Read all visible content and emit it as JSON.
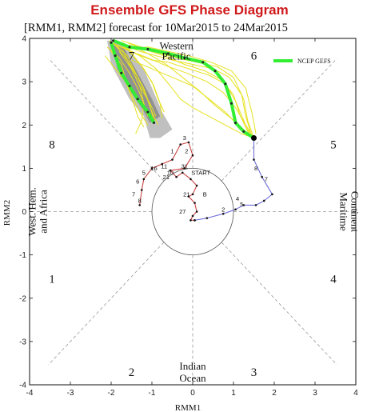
{
  "header": {
    "title": "Ensemble GFS Phase Diagram",
    "subtitle": "[RMM1, RMM2] forecast for 10Mar2015 to 24Mar2015"
  },
  "chart_data": {
    "type": "line",
    "xlabel": "RMM1",
    "ylabel": "RMM2",
    "xlim": [
      -4,
      4
    ],
    "ylim": [
      -4,
      4
    ],
    "xticks": [
      -4,
      -3,
      -2,
      -1,
      0,
      1,
      2,
      3,
      4
    ],
    "yticks": [
      -4,
      -3,
      -2,
      -1,
      0,
      1,
      2,
      3,
      4
    ],
    "grid": false,
    "legend_position": "top-right",
    "legend": [
      {
        "label": "NCEP GEFS",
        "color": "#33ee33"
      }
    ],
    "phases": [
      {
        "label": "1",
        "x": -3.45,
        "y": -1.55
      },
      {
        "label": "2",
        "x": -1.5,
        "y": -3.7
      },
      {
        "label": "3",
        "x": 1.5,
        "y": -3.7
      },
      {
        "label": "4",
        "x": 3.45,
        "y": -1.55
      },
      {
        "label": "5",
        "x": 3.45,
        "y": 1.55
      },
      {
        "label": "6",
        "x": 1.5,
        "y": 3.6
      },
      {
        "label": "7",
        "x": -1.5,
        "y": 3.6
      },
      {
        "label": "8",
        "x": -3.45,
        "y": 1.55
      }
    ],
    "regions": [
      {
        "label": "West. Hem.",
        "side": "left",
        "line": 1
      },
      {
        "label": "and Africa",
        "side": "left",
        "line": 2
      },
      {
        "label": "Maritime",
        "side": "right",
        "line": 1
      },
      {
        "label": "Continent",
        "side": "right",
        "line": 2
      },
      {
        "label": "Indian",
        "side": "bottom",
        "line": 1
      },
      {
        "label": "Ocean",
        "side": "bottom",
        "line": 2
      },
      {
        "label": "Western",
        "side": "top",
        "line": 1
      },
      {
        "label": "Pacific",
        "side": "top",
        "line": 2
      }
    ],
    "observed_series": [
      {
        "color": "#cc4444",
        "points": [
          [
            -1.3,
            0.15
          ],
          [
            -1.25,
            0.5
          ],
          [
            -1.2,
            0.75
          ],
          [
            -1.0,
            1.0
          ],
          [
            -0.75,
            1.1
          ],
          [
            -0.5,
            1.2
          ],
          [
            -0.3,
            1.55
          ],
          [
            -0.1,
            1.6
          ],
          [
            0.0,
            1.3
          ],
          [
            -0.2,
            1.0
          ],
          [
            -0.55,
            0.95
          ],
          [
            -0.4,
            0.8
          ],
          [
            -0.25,
            0.9
          ],
          [
            -0.05,
            0.75
          ],
          [
            0.1,
            0.6
          ],
          [
            0.0,
            0.4
          ],
          [
            -0.1,
            0.35
          ],
          [
            0.05,
            0.2
          ],
          [
            0.1,
            0.0
          ],
          [
            0.0,
            -0.1
          ],
          [
            -0.05,
            -0.2
          ],
          [
            0.05,
            -0.2
          ]
        ]
      },
      {
        "color": "#6f6fd8",
        "points": [
          [
            0.05,
            -0.2
          ],
          [
            0.35,
            -0.15
          ],
          [
            0.75,
            -0.05
          ],
          [
            1.05,
            0.05
          ],
          [
            1.25,
            0.15
          ],
          [
            1.55,
            0.15
          ],
          [
            1.75,
            0.25
          ],
          [
            1.95,
            0.4
          ],
          [
            1.7,
            0.8
          ],
          [
            1.5,
            1.2
          ],
          [
            1.5,
            1.7
          ]
        ]
      }
    ],
    "day_labels": [
      {
        "label": "3",
        "x": -0.2,
        "y": 1.65
      },
      {
        "label": "7",
        "x": -1.45,
        "y": 0.35
      },
      {
        "label": "8",
        "x": -1.3,
        "y": 0.2
      },
      {
        "label": "6",
        "x": -1.35,
        "y": 0.65
      },
      {
        "label": "5",
        "x": -1.2,
        "y": 0.85
      },
      {
        "label": "16",
        "x": -0.95,
        "y": 0.95
      },
      {
        "label": "1",
        "x": -0.5,
        "y": 1.35
      },
      {
        "label": "2",
        "x": -0.15,
        "y": 1.35
      },
      {
        "label": "11",
        "x": -0.7,
        "y": 1.0
      },
      {
        "label": "10",
        "x": -0.55,
        "y": 0.85
      },
      {
        "label": "31",
        "x": -0.2,
        "y": 1.0
      },
      {
        "label": "21",
        "x": -0.65,
        "y": 0.75
      },
      {
        "label": "START",
        "x": 0.2,
        "y": 0.85
      },
      {
        "label": "B",
        "x": 0.3,
        "y": 0.35
      },
      {
        "label": "21",
        "x": -0.15,
        "y": 0.35
      },
      {
        "label": "27",
        "x": -0.25,
        "y": -0.05
      },
      {
        "label": "8",
        "x": 1.55,
        "y": 0.95
      },
      {
        "label": "7",
        "x": 1.8,
        "y": 0.7
      },
      {
        "label": "2",
        "x": 0.75,
        "y": 0.0
      },
      {
        "label": "4",
        "x": 1.1,
        "y": 0.25
      },
      {
        "label": "5",
        "x": 1.2,
        "y": 0.12
      }
    ],
    "ensemble_spread": {
      "outer": [
        [
          -2.1,
          3.95
        ],
        [
          -1.7,
          3.9
        ],
        [
          -1.2,
          3.3
        ],
        [
          -0.75,
          2.3
        ],
        [
          -0.5,
          1.9
        ],
        [
          -0.8,
          1.7
        ],
        [
          -1.05,
          1.7
        ],
        [
          -1.2,
          2.2
        ],
        [
          -1.55,
          2.6
        ],
        [
          -2.0,
          3.4
        ],
        [
          -2.05,
          3.7
        ]
      ],
      "inner": [
        [
          -1.95,
          3.9
        ],
        [
          -1.7,
          3.8
        ],
        [
          -1.35,
          3.2
        ],
        [
          -1.0,
          2.6
        ],
        [
          -0.8,
          2.2
        ],
        [
          -1.05,
          2.05
        ],
        [
          -1.25,
          2.4
        ],
        [
          -1.55,
          2.8
        ],
        [
          -1.85,
          3.3
        ]
      ]
    },
    "ensemble_members": [
      [
        [
          -2.05,
          3.95
        ],
        [
          -1.7,
          3.7
        ],
        [
          -1.5,
          3.3
        ],
        [
          -1.3,
          2.9
        ],
        [
          -1.05,
          2.5
        ],
        [
          -0.9,
          2.2
        ]
      ],
      [
        [
          -1.95,
          3.9
        ],
        [
          -1.6,
          3.5
        ],
        [
          -1.35,
          3.1
        ],
        [
          -1.15,
          2.7
        ],
        [
          -1.0,
          2.3
        ],
        [
          -0.85,
          2.0
        ]
      ],
      [
        [
          -2.15,
          3.6
        ],
        [
          -1.9,
          3.3
        ],
        [
          -1.65,
          3.0
        ],
        [
          -1.45,
          2.6
        ],
        [
          -1.3,
          2.3
        ],
        [
          -1.1,
          2.0
        ]
      ],
      [
        [
          -1.85,
          3.95
        ],
        [
          -1.55,
          3.7
        ],
        [
          -1.25,
          3.35
        ],
        [
          -1.0,
          3.0
        ],
        [
          -0.85,
          2.6
        ],
        [
          -0.7,
          2.3
        ]
      ],
      [
        [
          -2.1,
          3.8
        ],
        [
          -1.8,
          3.55
        ],
        [
          -1.55,
          3.2
        ],
        [
          -1.35,
          2.85
        ],
        [
          -1.2,
          2.5
        ],
        [
          -1.1,
          2.2
        ]
      ],
      [
        [
          -2.0,
          3.7
        ],
        [
          -1.75,
          3.4
        ],
        [
          -1.6,
          2.9
        ],
        [
          -1.45,
          2.5
        ],
        [
          -1.35,
          2.2
        ],
        [
          -1.2,
          1.95
        ]
      ],
      [
        [
          -1.9,
          3.85
        ],
        [
          -1.6,
          3.6
        ],
        [
          -1.4,
          3.2
        ],
        [
          -1.2,
          2.85
        ],
        [
          -1.05,
          2.45
        ],
        [
          -0.95,
          2.1
        ]
      ],
      [
        [
          -1.7,
          3.9
        ],
        [
          -1.45,
          3.6
        ],
        [
          -1.2,
          3.3
        ],
        [
          -0.95,
          2.9
        ],
        [
          -0.8,
          2.5
        ],
        [
          -0.75,
          2.15
        ]
      ],
      [
        [
          -1.8,
          3.9
        ],
        [
          -1.3,
          3.7
        ],
        [
          -0.9,
          3.6
        ],
        [
          -0.5,
          3.5
        ],
        [
          0.0,
          3.4
        ],
        [
          0.5,
          3.3
        ],
        [
          0.9,
          3.1
        ],
        [
          1.2,
          2.7
        ],
        [
          1.3,
          2.2
        ],
        [
          1.45,
          1.75
        ]
      ],
      [
        [
          -1.75,
          3.95
        ],
        [
          -1.25,
          3.8
        ],
        [
          -0.8,
          3.65
        ],
        [
          -0.4,
          3.55
        ],
        [
          0.1,
          3.45
        ],
        [
          0.6,
          3.35
        ],
        [
          1.0,
          3.1
        ],
        [
          1.25,
          2.6
        ],
        [
          1.35,
          2.1
        ],
        [
          1.5,
          1.7
        ]
      ],
      [
        [
          -1.6,
          3.9
        ],
        [
          -1.2,
          3.75
        ],
        [
          -0.7,
          3.6
        ],
        [
          -0.2,
          3.4
        ],
        [
          0.3,
          3.25
        ],
        [
          0.7,
          3.05
        ],
        [
          1.0,
          2.7
        ],
        [
          1.15,
          2.25
        ],
        [
          1.35,
          1.85
        ],
        [
          1.5,
          1.7
        ]
      ],
      [
        [
          -1.9,
          3.85
        ],
        [
          -1.4,
          3.65
        ],
        [
          -1.0,
          3.5
        ],
        [
          -0.6,
          3.45
        ],
        [
          -0.1,
          3.3
        ],
        [
          0.4,
          3.15
        ],
        [
          0.8,
          2.95
        ],
        [
          1.05,
          2.55
        ],
        [
          1.3,
          2.0
        ],
        [
          1.45,
          1.7
        ]
      ],
      [
        [
          -1.7,
          3.8
        ],
        [
          -1.3,
          3.6
        ],
        [
          -0.9,
          3.3
        ],
        [
          -0.55,
          2.9
        ],
        [
          -0.3,
          2.6
        ],
        [
          0.0,
          2.4
        ],
        [
          0.4,
          2.2
        ],
        [
          0.8,
          2.0
        ],
        [
          1.2,
          1.8
        ],
        [
          1.5,
          1.7
        ]
      ],
      [
        [
          -1.5,
          3.5
        ],
        [
          -1.0,
          3.3
        ],
        [
          -0.5,
          3.1
        ],
        [
          0.0,
          2.9
        ],
        [
          0.4,
          2.6
        ],
        [
          0.8,
          2.3
        ],
        [
          1.2,
          1.9
        ],
        [
          1.5,
          1.7
        ]
      ],
      [
        [
          -1.65,
          3.75
        ],
        [
          -1.1,
          3.55
        ],
        [
          -0.6,
          3.35
        ],
        [
          -0.15,
          3.2
        ],
        [
          0.35,
          3.0
        ],
        [
          0.75,
          2.75
        ],
        [
          1.05,
          2.4
        ],
        [
          1.3,
          2.0
        ],
        [
          1.5,
          1.7
        ]
      ],
      [
        [
          -2.0,
          3.9
        ],
        [
          -1.6,
          3.75
        ],
        [
          -1.1,
          3.8
        ],
        [
          -0.6,
          3.7
        ],
        [
          -0.1,
          3.6
        ],
        [
          0.45,
          3.45
        ],
        [
          0.95,
          3.25
        ],
        [
          1.3,
          2.85
        ],
        [
          1.45,
          2.3
        ],
        [
          1.55,
          1.8
        ]
      ],
      [
        [
          -1.8,
          3.7
        ],
        [
          -1.5,
          3.3
        ],
        [
          -1.3,
          2.9
        ],
        [
          -1.2,
          2.5
        ],
        [
          -1.25,
          2.1
        ],
        [
          -1.4,
          1.8
        ]
      ],
      [
        [
          -1.55,
          3.85
        ],
        [
          -1.1,
          3.65
        ],
        [
          -0.65,
          3.4
        ],
        [
          -0.25,
          3.1
        ],
        [
          0.15,
          2.8
        ],
        [
          0.55,
          2.45
        ],
        [
          0.95,
          2.15
        ],
        [
          1.3,
          1.85
        ],
        [
          1.5,
          1.7
        ]
      ]
    ],
    "ensemble_mean": [
      [
        -1.95,
        3.95
      ],
      [
        -1.55,
        3.8
      ],
      [
        -1.1,
        3.75
      ],
      [
        -0.6,
        3.65
      ],
      [
        -0.2,
        3.55
      ],
      [
        0.25,
        3.45
      ],
      [
        0.55,
        3.25
      ],
      [
        0.8,
        2.95
      ],
      [
        0.95,
        2.5
      ],
      [
        1.05,
        2.05
      ],
      [
        1.25,
        1.85
      ],
      [
        1.5,
        1.7
      ]
    ],
    "ensemble_mean_7": [
      [
        -2.0,
        3.9
      ],
      [
        -1.9,
        3.6
      ],
      [
        -1.75,
        3.2
      ],
      [
        -1.55,
        2.9
      ],
      [
        -1.35,
        2.6
      ],
      [
        -1.1,
        2.3
      ],
      [
        -0.95,
        2.05
      ]
    ],
    "start_point": [
      1.5,
      1.7
    ]
  }
}
